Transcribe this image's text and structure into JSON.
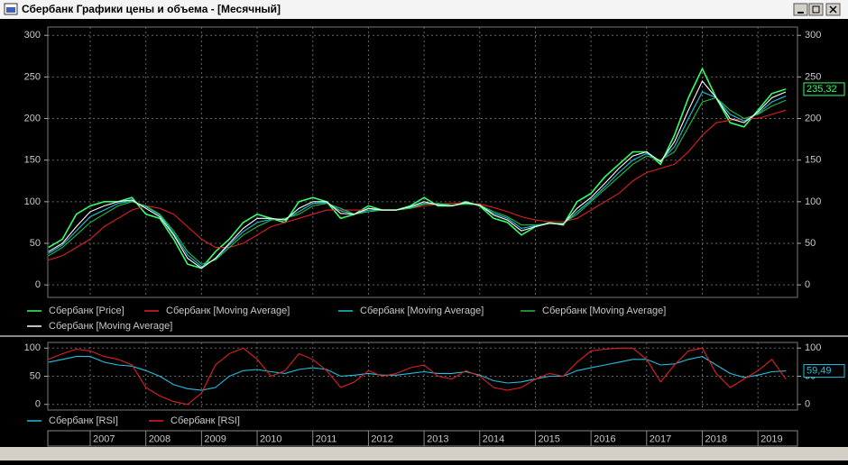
{
  "window": {
    "title": "Сбербанк Графики цены и объема - [Месячный]"
  },
  "chart_data": [
    {
      "type": "line",
      "categories": [
        null,
        null,
        null,
        "2007",
        null,
        null,
        null,
        "2008",
        null,
        null,
        null,
        "2009",
        null,
        null,
        null,
        "2010",
        null,
        null,
        null,
        "2011",
        null,
        null,
        null,
        "2012",
        null,
        null,
        null,
        "2013",
        null,
        null,
        null,
        "2014",
        null,
        null,
        null,
        "2015",
        null,
        null,
        null,
        "2016",
        null,
        null,
        null,
        "2017",
        null,
        null,
        null,
        "2018",
        null,
        null,
        null,
        "2019",
        null,
        null
      ],
      "ylim": [
        -15,
        310
      ],
      "yticks": [
        0,
        50,
        100,
        150,
        200,
        250,
        300
      ],
      "grid": true,
      "series": [
        {
          "name": "Сбербанк [Price]",
          "color": "#33ff66",
          "values": [
            45,
            55,
            85,
            95,
            100,
            100,
            105,
            85,
            80,
            55,
            25,
            20,
            40,
            55,
            75,
            85,
            80,
            75,
            100,
            105,
            100,
            80,
            85,
            95,
            90,
            90,
            95,
            105,
            95,
            95,
            100,
            95,
            80,
            75,
            60,
            70,
            75,
            72,
            100,
            110,
            130,
            145,
            160,
            160,
            145,
            180,
            225,
            260,
            225,
            195,
            190,
            210,
            230,
            235.32
          ]
        },
        {
          "name": "Сбербанк [Moving Average]",
          "color": "#e02020",
          "values": [
            30,
            35,
            45,
            55,
            70,
            80,
            90,
            95,
            92,
            85,
            70,
            55,
            45,
            45,
            50,
            60,
            70,
            75,
            80,
            85,
            90,
            90,
            90,
            90,
            90,
            90,
            92,
            95,
            97,
            98,
            98,
            97,
            93,
            88,
            82,
            78,
            76,
            76,
            80,
            90,
            100,
            110,
            125,
            135,
            140,
            145,
            160,
            180,
            195,
            198,
            200,
            200,
            205,
            210
          ]
        },
        {
          "name": "Сбербанк [Moving Average]",
          "color": "#20c0e0",
          "values": [
            38,
            48,
            65,
            82,
            90,
            98,
            101,
            94,
            84,
            62,
            36,
            22,
            31,
            48,
            64,
            75,
            79,
            79,
            88,
            98,
            99,
            89,
            85,
            90,
            90,
            90,
            93,
            98,
            97,
            95,
            98,
            96,
            86,
            80,
            68,
            71,
            74,
            73,
            88,
            102,
            118,
            135,
            150,
            158,
            149,
            166,
            200,
            232,
            225,
            205,
            197,
            206,
            220,
            227
          ]
        },
        {
          "name": "Сбербанк [Moving Average]",
          "color": "#20c040",
          "values": [
            35,
            45,
            60,
            75,
            85,
            95,
            100,
            95,
            85,
            65,
            40,
            25,
            30,
            45,
            60,
            70,
            78,
            80,
            85,
            95,
            98,
            92,
            85,
            88,
            90,
            90,
            92,
            97,
            98,
            96,
            97,
            96,
            88,
            82,
            72,
            72,
            74,
            74,
            85,
            100,
            115,
            130,
            145,
            155,
            150,
            160,
            190,
            220,
            225,
            210,
            200,
            205,
            215,
            222
          ]
        },
        {
          "name": "Сбербанк [Moving Average]",
          "color": "#ffffff",
          "values": [
            40,
            50,
            70,
            88,
            95,
            100,
            102,
            92,
            82,
            60,
            32,
            20,
            32,
            50,
            68,
            80,
            80,
            78,
            92,
            100,
            100,
            86,
            85,
            92,
            90,
            90,
            94,
            100,
            96,
            95,
            99,
            96,
            84,
            78,
            65,
            70,
            74,
            73,
            92,
            105,
            122,
            140,
            155,
            160,
            148,
            172,
            210,
            245,
            225,
            200,
            195,
            208,
            225,
            232
          ]
        }
      ],
      "marker": {
        "value": 235.32,
        "label": "235,32",
        "color": "#33ff66"
      }
    },
    {
      "type": "line",
      "ylim": [
        -10,
        110
      ],
      "yticks": [
        0,
        50,
        100
      ],
      "grid": true,
      "series": [
        {
          "name": "Сбербанк [RSI]",
          "color": "#20c0e0",
          "values": [
            75,
            80,
            85,
            85,
            75,
            70,
            68,
            60,
            50,
            35,
            28,
            25,
            30,
            50,
            60,
            62,
            58,
            55,
            62,
            65,
            62,
            50,
            52,
            55,
            52,
            52,
            55,
            58,
            55,
            55,
            58,
            52,
            42,
            38,
            40,
            45,
            50,
            50,
            60,
            65,
            70,
            75,
            80,
            80,
            70,
            72,
            80,
            85,
            70,
            55,
            48,
            52,
            58,
            59.49
          ]
        },
        {
          "name": "Сбербанк [RSI]",
          "color": "#e02020",
          "values": [
            80,
            90,
            98,
            95,
            85,
            80,
            70,
            30,
            15,
            5,
            0,
            20,
            70,
            90,
            100,
            80,
            50,
            60,
            90,
            80,
            60,
            30,
            40,
            60,
            50,
            55,
            65,
            70,
            50,
            45,
            60,
            50,
            30,
            25,
            30,
            45,
            55,
            50,
            75,
            95,
            98,
            100,
            100,
            80,
            40,
            70,
            95,
            100,
            55,
            30,
            45,
            60,
            80,
            45
          ]
        }
      ],
      "marker": {
        "value": 59.49,
        "label": "59,49",
        "color": "#20c0e0"
      }
    }
  ]
}
